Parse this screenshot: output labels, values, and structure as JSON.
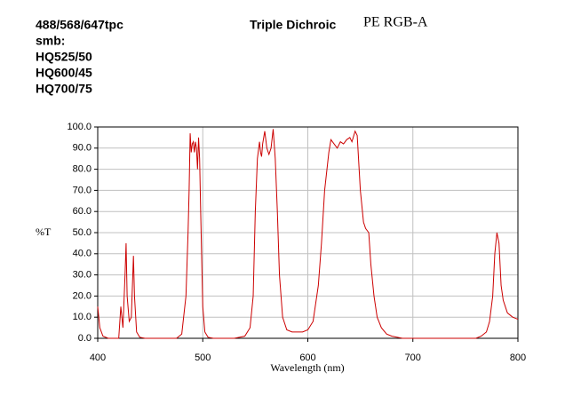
{
  "chart_data": {
    "type": "line",
    "notes": [
      "488/568/647tpc",
      "smb:",
      "HQ525/50",
      "HQ600/45",
      "HQ700/75"
    ],
    "title": "Triple Dichroic",
    "subtitle": "PE RGB-A",
    "x_label": "Wavelength (nm)",
    "y_label": "%T",
    "color": "#cc0000",
    "grid": true,
    "xlim": [
      400,
      800
    ],
    "ylim": [
      0,
      100
    ],
    "xticks": [
      400,
      500,
      600,
      700,
      800
    ],
    "yticks": [
      {
        "value": 0,
        "label": "0.0"
      },
      {
        "value": 10,
        "label": "10.0"
      },
      {
        "value": 20,
        "label": "20.0"
      },
      {
        "value": 30,
        "label": "30.0"
      },
      {
        "value": 40,
        "label": "40.0"
      },
      {
        "value": 50,
        "label": "50.0"
      },
      {
        "value": 60,
        "label": "60.0"
      },
      {
        "value": 70,
        "label": "70.0"
      },
      {
        "value": 80,
        "label": "80.0"
      },
      {
        "value": 90,
        "label": "90.0"
      },
      {
        "value": 100,
        "label": "100.0"
      }
    ],
    "x": [
      400,
      402,
      405,
      410,
      420,
      422,
      424,
      426,
      427,
      428,
      430,
      432,
      434,
      435,
      437,
      440,
      445,
      460,
      475,
      480,
      484,
      486,
      487,
      488,
      489,
      490,
      491,
      492,
      493,
      494,
      495,
      496,
      497,
      498,
      500,
      502,
      505,
      510,
      530,
      540,
      545,
      548,
      550,
      552,
      554,
      555,
      556,
      557,
      559,
      561,
      563,
      565,
      567,
      569,
      571,
      573,
      576,
      580,
      585,
      595,
      600,
      605,
      610,
      613,
      616,
      620,
      622,
      625,
      628,
      631,
      634,
      637,
      640,
      642,
      645,
      647,
      650,
      653,
      655,
      658,
      660,
      663,
      666,
      670,
      675,
      680,
      690,
      760,
      765,
      770,
      773,
      776,
      778,
      780,
      782,
      784,
      786,
      788,
      790,
      795,
      800
    ],
    "values": [
      15,
      5,
      1,
      0,
      0,
      15,
      5,
      30,
      45,
      20,
      8,
      10,
      39,
      20,
      3,
      0.5,
      0,
      0,
      0,
      2,
      20,
      50,
      70,
      97,
      88,
      92,
      93,
      88,
      93,
      90,
      80,
      95,
      85,
      60,
      15,
      3,
      0.5,
      0,
      0,
      1,
      5,
      20,
      60,
      85,
      93,
      88,
      86,
      92,
      98,
      90,
      87,
      90,
      99,
      85,
      60,
      30,
      10,
      4,
      3,
      3,
      4,
      8,
      25,
      45,
      70,
      88,
      94,
      92,
      90,
      93,
      92,
      94,
      95,
      93,
      98,
      96,
      70,
      55,
      52,
      50,
      35,
      20,
      10,
      5,
      2,
      1,
      0,
      0,
      1,
      3,
      8,
      20,
      40,
      50,
      45,
      25,
      18,
      15,
      12,
      10,
      9
    ]
  }
}
